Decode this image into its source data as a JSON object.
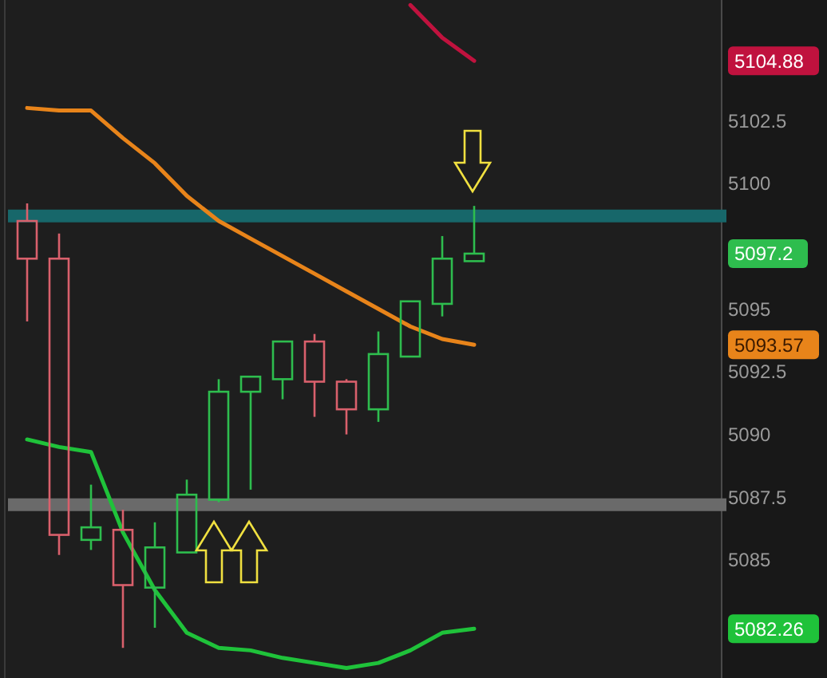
{
  "chart_data": {
    "type": "candlestick",
    "categories": [
      null,
      null,
      null,
      null,
      null,
      null,
      null,
      null,
      null,
      null,
      null,
      null,
      null,
      null,
      null
    ],
    "ohlc": [
      [
        5098.5,
        5099.2,
        5094.5,
        5097.0
      ],
      [
        5097.0,
        5098.0,
        5085.2,
        5086.0
      ],
      [
        5085.8,
        5088.0,
        5085.4,
        5086.3
      ],
      [
        5086.2,
        5087.0,
        5081.5,
        5084.0
      ],
      [
        5083.9,
        5086.5,
        5082.3,
        5085.5
      ],
      [
        5085.3,
        5088.2,
        5085.3,
        5087.6
      ],
      [
        5087.4,
        5092.2,
        5087.3,
        5091.7
      ],
      [
        5091.7,
        5092.3,
        5087.8,
        5092.3
      ],
      [
        5092.2,
        5093.7,
        5091.4,
        5093.7
      ],
      [
        5093.7,
        5094.0,
        5090.7,
        5092.1
      ],
      [
        5092.1,
        5092.2,
        5090.0,
        5091.0
      ],
      [
        5091.0,
        5094.1,
        5090.5,
        5093.2
      ],
      [
        5093.1,
        5095.3,
        5093.1,
        5095.3
      ],
      [
        5095.2,
        5097.9,
        5094.7,
        5097.0
      ],
      [
        5096.9,
        5099.1,
        5096.9,
        5097.2
      ]
    ],
    "colors": [
      "#d9606c",
      "#d9606c",
      "#2ebd4e",
      "#d9606c",
      "#2ebd4e",
      "#2ebd4e",
      "#2ebd4e",
      "#2ebd4e",
      "#2ebd4e",
      "#d9606c",
      "#d9606c",
      "#2ebd4e",
      "#2ebd4e",
      "#2ebd4e",
      "#2ebd4e"
    ],
    "series": [
      {
        "type": "line",
        "color": "#e8841a",
        "values": [
          5103.0,
          5102.9,
          5102.9,
          5101.8,
          5100.8,
          5099.5,
          5098.5,
          5097.8,
          5097.1,
          5096.4,
          5095.7,
          5095.0,
          5094.3,
          5093.8,
          5093.57
        ]
      },
      {
        "type": "line",
        "color": "#1fc23a",
        "values": [
          5089.8,
          5089.5,
          5089.3,
          5086.1,
          5083.8,
          5082.1,
          5081.5,
          5081.4,
          5081.1,
          5080.9,
          5080.7,
          5080.9,
          5081.4,
          5082.1,
          5082.26
        ]
      },
      {
        "type": "line",
        "color": "#c0123e",
        "values": [
          null,
          null,
          null,
          null,
          null,
          null,
          null,
          null,
          null,
          null,
          null,
          null,
          5107.1,
          5105.8,
          5104.88
        ]
      }
    ],
    "annotations": [
      "5104.88",
      "5097.2",
      "5093.57",
      "5082.26"
    ],
    "ref_lines": [
      {
        "axis": "y",
        "value": 5098.7,
        "color": "#17676a"
      },
      {
        "axis": "y",
        "value": 5087.2,
        "color": "#6a6a6a"
      }
    ],
    "ylim": [
      5080.3,
      5107.3
    ],
    "yticks": [
      5085,
      5087.5,
      5090,
      5092.5,
      5095,
      5100,
      5102.5
    ],
    "line_style": "solid",
    "grid": false
  }
}
